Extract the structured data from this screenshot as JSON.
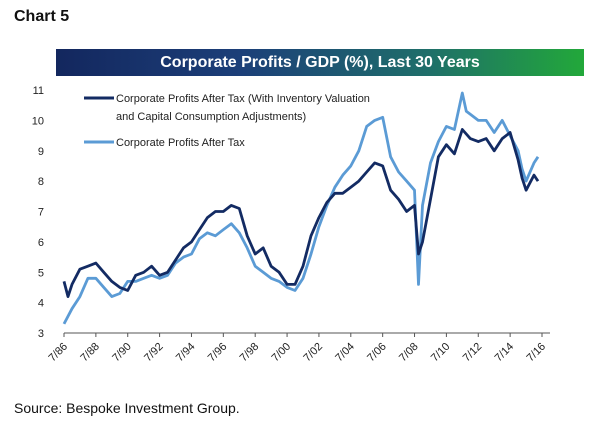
{
  "header": {
    "chart_label": "Chart 5",
    "banner_title": "Corporate Profits / GDP (%), Last 30 Years"
  },
  "footer": {
    "source": "Source: Bespoke Investment Group."
  },
  "colors": {
    "dark_series": "#132b63",
    "light_series": "#5b9bd5",
    "banner_left": "#13275e",
    "banner_right": "#22a83a"
  },
  "chart_data": {
    "type": "line",
    "title": "Corporate Profits / GDP (%), Last 30 Years",
    "xlabel": "",
    "ylabel": "",
    "ylim": [
      3,
      11
    ],
    "xlim": [
      1986.5,
      2016.5
    ],
    "yticks": [
      3,
      4,
      5,
      6,
      7,
      8,
      9,
      10,
      11
    ],
    "xticks": [
      "7/86",
      "7/88",
      "7/90",
      "7/92",
      "7/94",
      "7/96",
      "7/98",
      "7/00",
      "7/02",
      "7/04",
      "7/06",
      "7/08",
      "7/10",
      "7/12",
      "7/14",
      "7/16"
    ],
    "grid": false,
    "legend_position": "top-left",
    "series": [
      {
        "name": "Corporate Profits After Tax (With Inventory Valuation and Capital Consumption Adjustments)",
        "x": [
          1986.5,
          1986.75,
          1987.0,
          1987.5,
          1988.0,
          1988.5,
          1989.0,
          1989.5,
          1990.0,
          1990.5,
          1991.0,
          1991.5,
          1992.0,
          1992.5,
          1993.0,
          1993.5,
          1994.0,
          1994.5,
          1995.0,
          1995.5,
          1996.0,
          1996.5,
          1997.0,
          1997.5,
          1998.0,
          1998.5,
          1999.0,
          1999.5,
          2000.0,
          2000.5,
          2001.0,
          2001.5,
          2002.0,
          2002.5,
          2003.0,
          2003.5,
          2004.0,
          2004.5,
          2005.0,
          2005.5,
          2006.0,
          2006.5,
          2007.0,
          2007.5,
          2008.0,
          2008.5,
          2008.75,
          2009.0,
          2009.5,
          2010.0,
          2010.5,
          2011.0,
          2011.5,
          2012.0,
          2012.5,
          2013.0,
          2013.5,
          2014.0,
          2014.5,
          2015.0,
          2015.25,
          2015.5,
          2016.0,
          2016.25
        ],
        "y": [
          4.7,
          4.2,
          4.6,
          5.1,
          5.2,
          5.3,
          5.0,
          4.7,
          4.5,
          4.4,
          4.9,
          5.0,
          5.2,
          4.9,
          5.0,
          5.4,
          5.8,
          6.0,
          6.4,
          6.8,
          7.0,
          7.0,
          7.2,
          7.1,
          6.2,
          5.6,
          5.8,
          5.2,
          5.0,
          4.6,
          4.6,
          5.2,
          6.2,
          6.8,
          7.3,
          7.6,
          7.6,
          7.8,
          8.0,
          8.3,
          8.6,
          8.5,
          7.7,
          7.4,
          7.0,
          7.2,
          5.6,
          6.0,
          7.4,
          8.8,
          9.2,
          8.9,
          9.7,
          9.4,
          9.3,
          9.4,
          9.0,
          9.4,
          9.6,
          8.7,
          8.1,
          7.7,
          8.2,
          8.0
        ]
      },
      {
        "name": "Corporate Profits After Tax",
        "x": [
          1986.5,
          1987.0,
          1987.5,
          1988.0,
          1988.5,
          1989.0,
          1989.5,
          1990.0,
          1990.5,
          1991.0,
          1991.5,
          1992.0,
          1992.5,
          1993.0,
          1993.5,
          1994.0,
          1994.5,
          1995.0,
          1995.5,
          1996.0,
          1996.5,
          1997.0,
          1997.5,
          1998.0,
          1998.5,
          1999.0,
          1999.5,
          2000.0,
          2000.5,
          2001.0,
          2001.5,
          2002.0,
          2002.5,
          2003.0,
          2003.5,
          2004.0,
          2004.5,
          2005.0,
          2005.5,
          2006.0,
          2006.5,
          2007.0,
          2007.5,
          2008.0,
          2008.5,
          2008.75,
          2009.0,
          2009.5,
          2010.0,
          2010.5,
          2011.0,
          2011.5,
          2011.75,
          2012.0,
          2012.5,
          2013.0,
          2013.5,
          2014.0,
          2014.5,
          2015.0,
          2015.25,
          2015.5,
          2016.0,
          2016.25
        ],
        "y": [
          3.3,
          3.8,
          4.2,
          4.8,
          4.8,
          4.5,
          4.2,
          4.3,
          4.7,
          4.7,
          4.8,
          4.9,
          4.8,
          4.9,
          5.3,
          5.5,
          5.6,
          6.1,
          6.3,
          6.2,
          6.4,
          6.6,
          6.3,
          5.8,
          5.2,
          5.0,
          4.8,
          4.7,
          4.5,
          4.4,
          4.8,
          5.6,
          6.5,
          7.2,
          7.8,
          8.2,
          8.5,
          9.0,
          9.8,
          10.0,
          10.1,
          8.8,
          8.3,
          8.0,
          7.7,
          4.6,
          7.2,
          8.6,
          9.3,
          9.8,
          9.7,
          10.9,
          10.3,
          10.2,
          10.0,
          10.0,
          9.6,
          10.0,
          9.5,
          9.0,
          8.4,
          8.0,
          8.6,
          8.8
        ]
      }
    ]
  }
}
